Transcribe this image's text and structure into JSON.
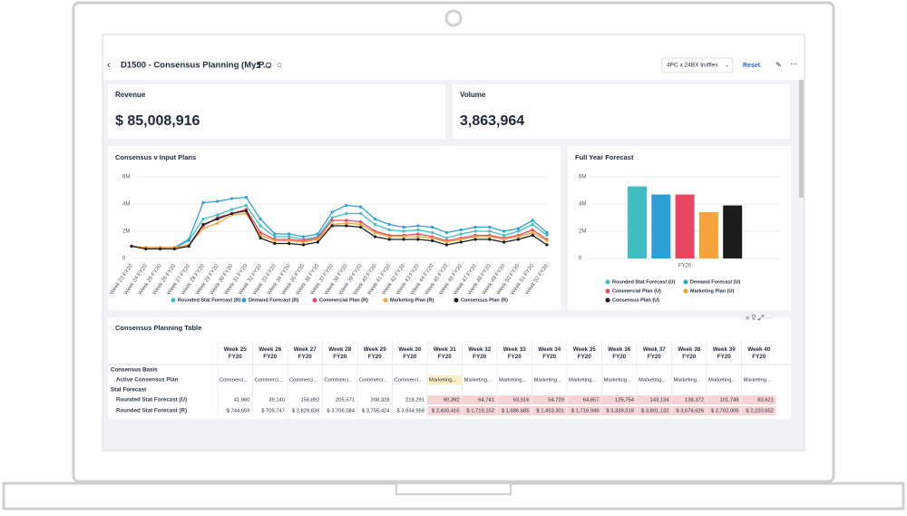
{
  "header": {
    "title": "D1500 - Consensus Planning (My P...",
    "scenario": "4PC x 24BX truffles",
    "reset": "Reset"
  },
  "kpis": [
    {
      "label": "Revenue",
      "value": "$ 85,008,916"
    },
    {
      "label": "Volume",
      "value": "3,863,964"
    }
  ],
  "chart_data": [
    {
      "type": "line",
      "title": "Consensus v Input Plans",
      "categories": [
        "Week 23 FY20",
        "Week 24 FY20",
        "Week 25 FY20",
        "Week 26 FY20",
        "Week 27 FY20",
        "Week 28 FY20",
        "Week 29 FY20",
        "Week 30 FY20",
        "Week 31 FY20",
        "Week 32 FY20",
        "Week 33 FY20",
        "Week 34 FY20",
        "Week 35 FY20",
        "Week 36 FY20",
        "Week 37 FY20",
        "Week 38 FY20",
        "Week 39 FY20",
        "Week 40 FY20",
        "Week 41 FY20",
        "Week 42 FY20",
        "Week 43 FY20",
        "Week 44 FY20",
        "Week 45 FY20",
        "Week 46 FY20",
        "Week 47 FY20",
        "Week 48 FY20",
        "Week 49 FY20",
        "Week 50 FY20",
        "Week 51 FY20",
        "Week 52 FY20"
      ],
      "series": [
        {
          "name": "Rounded Stat Forecast (R)",
          "color": "#3fbfc4",
          "values": [
            900000,
            800000,
            800000,
            800000,
            1300000,
            2900000,
            3200000,
            3600000,
            3900000,
            2400000,
            1600000,
            1600000,
            1400000,
            1600000,
            3000000,
            3300000,
            3300000,
            2500000,
            2100000,
            2000000,
            2100000,
            1900000,
            1500000,
            1800000,
            2000000,
            2000000,
            1700000,
            2000000,
            2500000,
            1700000
          ]
        },
        {
          "name": "Demand Forecast (R)",
          "color": "#2d9fd8",
          "values": [
            900000,
            800000,
            800000,
            800000,
            1400000,
            4100000,
            4200000,
            4400000,
            4500000,
            2900000,
            1800000,
            1800000,
            1600000,
            1800000,
            3400000,
            3900000,
            3800000,
            2900000,
            2500000,
            2300000,
            2400000,
            2300000,
            1900000,
            2100000,
            2300000,
            2300000,
            2000000,
            2200000,
            2800000,
            1900000
          ]
        },
        {
          "name": "Commercial Plan (R)",
          "color": "#e8475f",
          "values": [
            900000,
            800000,
            800000,
            800000,
            1000000,
            2400000,
            3000000,
            3300000,
            3600000,
            1900000,
            1400000,
            1400000,
            1300000,
            1500000,
            2800000,
            2800000,
            2700000,
            2000000,
            1700000,
            1700000,
            1800000,
            1600000,
            1300000,
            1500000,
            1700000,
            1700000,
            1500000,
            1700000,
            2100000,
            1400000
          ]
        },
        {
          "name": "Marketing Plan (R)",
          "color": "#f5a23a",
          "values": [
            900000,
            800000,
            800000,
            800000,
            1000000,
            2200000,
            2600000,
            3200000,
            3300000,
            1700000,
            1300000,
            1300000,
            1200000,
            1400000,
            2500000,
            2600000,
            2500000,
            1900000,
            1600000,
            1600000,
            1600000,
            1500000,
            1200000,
            1400000,
            1600000,
            1600000,
            1400000,
            1600000,
            1900000,
            1300000
          ]
        },
        {
          "name": "Consensus Plan (R)",
          "color": "#1c1c1c",
          "values": [
            900000,
            700000,
            700000,
            700000,
            900000,
            2500000,
            2900000,
            3300000,
            3500000,
            1500000,
            1100000,
            1100000,
            1000000,
            1200000,
            2400000,
            2400000,
            2300000,
            1600000,
            1400000,
            1400000,
            1400000,
            1300000,
            1000000,
            1200000,
            1400000,
            1400000,
            1200000,
            1400000,
            1700000,
            1000000
          ]
        }
      ],
      "ylim": [
        0,
        6000000
      ],
      "yticks": [
        0,
        {
          "value": 2000000,
          "label": "2M"
        },
        {
          "value": 4000000,
          "label": "4M"
        },
        {
          "value": 6000000,
          "label": "6M"
        }
      ]
    },
    {
      "type": "bar",
      "title": "Full Year Forecast",
      "categories": [
        "FY20"
      ],
      "series": [
        {
          "name": "Rounded Stat Forecast (U)",
          "color": "#3fbfc4",
          "values": [
            5300000
          ]
        },
        {
          "name": "Demand Forecast (U)",
          "color": "#2d9fd8",
          "values": [
            4700000
          ]
        },
        {
          "name": "Commercial Plan (U)",
          "color": "#e8475f",
          "values": [
            4700000
          ]
        },
        {
          "name": "Marketing Plan (U)",
          "color": "#f5a23a",
          "values": [
            3400000
          ]
        },
        {
          "name": "Consensus Plan (U)",
          "color": "#1c1c1c",
          "values": [
            3900000
          ]
        }
      ],
      "ylim": [
        0,
        6000000
      ],
      "yticks": [
        0,
        {
          "value": 2000000,
          "label": "2M"
        },
        {
          "value": 4000000,
          "label": "4M"
        },
        {
          "value": 6000000,
          "label": "6M"
        }
      ]
    }
  ],
  "table": {
    "title": "Consensus Planning Table",
    "columns": [
      "Week 25 FY20",
      "Week 26 FY20",
      "Week 27 FY20",
      "Week 28 FY20",
      "Week 29 FY20",
      "Week 30 FY20",
      "Week 31 FY20",
      "Week 32 FY20",
      "Week 33 FY20",
      "Week 34 FY20",
      "Week 35 FY20",
      "Week 36 FY20",
      "Week 37 FY20",
      "Week 38 FY20",
      "Week 39 FY20",
      "Week 40 FY20"
    ],
    "rows": [
      {
        "label": "Consensus Basis"
      },
      {
        "label": "Active Consensus Plan",
        "cells": [
          "Commerci...",
          "Commerci...",
          "Commerci...",
          "Commerci...",
          "Commerci...",
          "Commerci...",
          "Marketing...",
          "Marketing...",
          "Marketing...",
          "Marketing...",
          "Marketing...",
          "Marketing...",
          "Marketing...",
          "Marketing...",
          "Marketing...",
          "Marketing..."
        ]
      },
      {
        "label": "Stat Forecast"
      },
      {
        "label": "Rounded Stat Forecast (U)",
        "cells": [
          "41,060",
          "39,140",
          "156,892",
          "205,571",
          "208,328",
          "218,291",
          "90,392",
          "64,741",
          "63,516",
          "54,729",
          "64,657",
          "125,754",
          "143,134",
          "138,372",
          "101,749",
          "83,621"
        ]
      },
      {
        "label": "Rounded Stat Forecast (R)",
        "cells": [
          "$ 744,659",
          "$ 709,747",
          "$ 2,829,836",
          "$ 3,706,084",
          "$ 3,755,424",
          "$ 3,934,958",
          "$ 2,400,416",
          "$ 1,719,152",
          "$ 1,686,685",
          "$ 1,453,301",
          "$ 1,716,949",
          "$ 3,339,518",
          "$ 3,801,132",
          "$ 3,674,626",
          "$ 2,702,005",
          "$ 2,220,652"
        ]
      }
    ]
  }
}
